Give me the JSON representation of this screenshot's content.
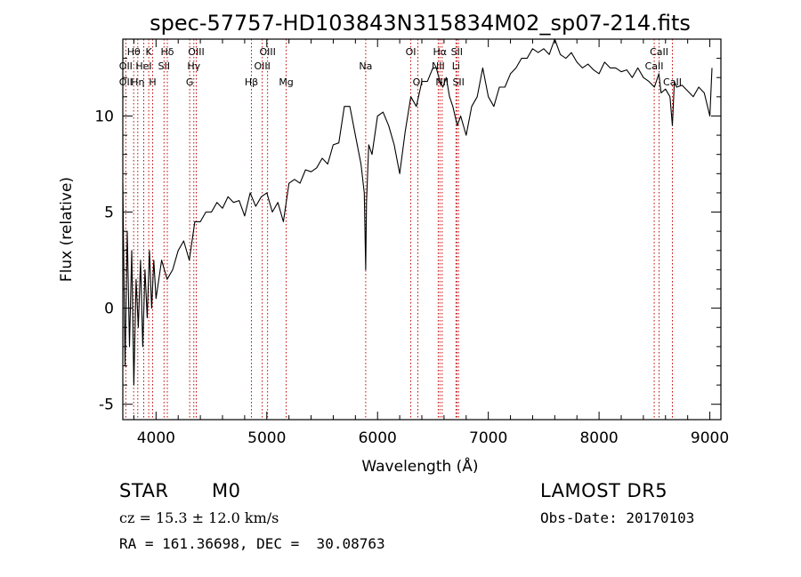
{
  "chart_data": {
    "type": "line",
    "title": "spec-57757-HD103843N315834M02_sp07-214.fits",
    "xlabel": "Wavelength (Å)",
    "ylabel": "Flux (relative)",
    "xlim": [
      3700,
      9100
    ],
    "ylim": [
      -5.8,
      14
    ],
    "xticks": [
      4000,
      5000,
      6000,
      7000,
      8000,
      9000
    ],
    "yticks": [
      -5,
      0,
      5,
      10
    ],
    "grid": false,
    "series": [
      {
        "x": [
          3700,
          3720,
          3740,
          3760,
          3780,
          3800,
          3820,
          3840,
          3860,
          3880,
          3900,
          3920,
          3940,
          3960,
          3980,
          4000,
          4050,
          4100,
          4150,
          4200,
          4250,
          4300,
          4350,
          4400,
          4450,
          4500,
          4550,
          4600,
          4650,
          4700,
          4750,
          4800,
          4850,
          4900,
          4950,
          5000,
          5050,
          5100,
          5150,
          5200,
          5250,
          5300,
          5350,
          5400,
          5450,
          5500,
          5550,
          5600,
          5650,
          5700,
          5750,
          5800,
          5850,
          5880,
          5893,
          5900,
          5920,
          5950,
          6000,
          6050,
          6100,
          6150,
          6200,
          6250,
          6300,
          6350,
          6400,
          6450,
          6500,
          6530,
          6563,
          6590,
          6620,
          6650,
          6680,
          6700,
          6720,
          6750,
          6800,
          6850,
          6900,
          6950,
          7000,
          7050,
          7100,
          7150,
          7200,
          7250,
          7300,
          7350,
          7400,
          7450,
          7500,
          7550,
          7600,
          7650,
          7700,
          7750,
          7800,
          7850,
          7900,
          7950,
          8000,
          8050,
          8100,
          8150,
          8200,
          8250,
          8300,
          8350,
          8400,
          8450,
          8500,
          8540,
          8560,
          8600,
          8640,
          8662,
          8680,
          8700,
          8750,
          8800,
          8850,
          8900,
          8950,
          9000,
          9020
        ],
        "y": [
          6.5,
          -3,
          4,
          -2,
          3,
          -4,
          1.5,
          -1,
          2.5,
          -2,
          2,
          -0.5,
          3,
          0,
          2.5,
          0.5,
          2.5,
          1.5,
          2,
          3,
          3.5,
          2.5,
          4.5,
          4.5,
          5,
          5,
          5.5,
          5.2,
          5.8,
          5.5,
          5.6,
          4.8,
          6,
          5.3,
          5.8,
          6,
          5,
          5.5,
          4.5,
          6.5,
          6.7,
          6.5,
          7.2,
          7.1,
          7.3,
          7.8,
          7.5,
          8.5,
          8.6,
          10.5,
          10.5,
          9,
          7.5,
          6,
          2,
          5.5,
          8.5,
          8,
          10,
          10.2,
          9.5,
          8.5,
          7,
          9.2,
          11,
          10.5,
          11.8,
          11.8,
          12.5,
          12.5,
          11.8,
          11.5,
          12,
          11,
          10.5,
          10,
          9.5,
          10,
          9,
          10.5,
          11,
          12.5,
          11,
          10.5,
          11.5,
          11.5,
          12.2,
          12.5,
          13,
          13,
          13.5,
          13.3,
          13.5,
          13.2,
          14,
          13.2,
          13,
          13.3,
          12.8,
          12.5,
          12.7,
          12.4,
          12.2,
          12.8,
          12.5,
          12.5,
          12.3,
          12.4,
          12,
          12.5,
          12,
          11.8,
          11.5,
          12.2,
          11.2,
          11.4,
          11,
          9.5,
          11.8,
          11.5,
          11.6,
          11.3,
          11,
          11.5,
          11.2,
          10,
          12.5
        ]
      }
    ],
    "lines": [
      {
        "label": "Hθ",
        "x": 3798,
        "row": 1
      },
      {
        "label": "OII",
        "x": 3727,
        "row": 2
      },
      {
        "label": "OII",
        "x": 3727,
        "row": 3
      },
      {
        "label": "Hη",
        "x": 3835,
        "row": 3
      },
      {
        "label": "K",
        "x": 3934,
        "row": 1
      },
      {
        "label": "HeI",
        "x": 3889,
        "row": 2
      },
      {
        "label": "H",
        "x": 3969,
        "row": 3
      },
      {
        "label": "Hδ",
        "x": 4102,
        "row": 1
      },
      {
        "label": "SII",
        "x": 4072,
        "row": 2
      },
      {
        "label": "OIII",
        "x": 4363,
        "row": 1
      },
      {
        "label": "Hγ",
        "x": 4341,
        "row": 2
      },
      {
        "label": "G",
        "x": 4304,
        "row": 3
      },
      {
        "label": "Hβ",
        "x": 4861,
        "row": 3
      },
      {
        "label": "OIII",
        "x": 5007,
        "row": 1
      },
      {
        "label": "OIII",
        "x": 4959,
        "row": 2
      },
      {
        "label": "Mg",
        "x": 5175,
        "row": 3
      },
      {
        "label": "Na",
        "x": 5893,
        "row": 2
      },
      {
        "label": "OI",
        "x": 6300,
        "row": 1
      },
      {
        "label": "OI",
        "x": 6364,
        "row": 3
      },
      {
        "label": "Hα",
        "x": 6563,
        "row": 1
      },
      {
        "label": "NII",
        "x": 6548,
        "row": 2
      },
      {
        "label": "NII",
        "x": 6583,
        "row": 3
      },
      {
        "label": "SII",
        "x": 6716,
        "row": 1
      },
      {
        "label": "Li",
        "x": 6708,
        "row": 2
      },
      {
        "label": "SII",
        "x": 6731,
        "row": 3
      },
      {
        "label": "CaII",
        "x": 8542,
        "row": 1
      },
      {
        "label": "CaII",
        "x": 8498,
        "row": 2
      },
      {
        "label": "CaII",
        "x": 8662,
        "row": 3
      }
    ]
  },
  "info": {
    "class": "STAR",
    "subclass": "M0",
    "survey": "LAMOST DR5",
    "cz": "cz = 15.3 ± 12.0 km/s",
    "obsdate": "Obs-Date: 20170103",
    "coords": "RA = 161.36698, DEC =  30.08763"
  }
}
